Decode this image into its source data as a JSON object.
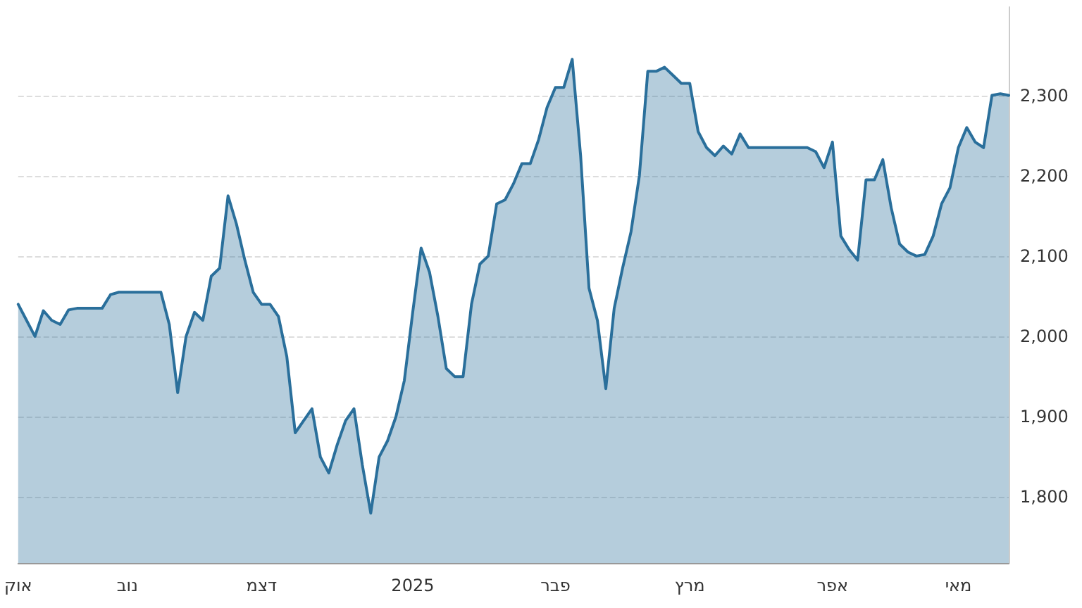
{
  "chart_data": {
    "type": "area",
    "categories": [
      "אוק",
      null,
      null,
      null,
      null,
      null,
      null,
      null,
      null,
      null,
      null,
      null,
      null,
      "נוב",
      null,
      null,
      null,
      null,
      null,
      null,
      null,
      null,
      null,
      null,
      null,
      null,
      null,
      null,
      null,
      "דצמ",
      null,
      null,
      null,
      null,
      null,
      null,
      null,
      null,
      null,
      null,
      null,
      null,
      null,
      null,
      null,
      null,
      null,
      "2025",
      null,
      null,
      null,
      null,
      null,
      null,
      null,
      null,
      null,
      null,
      null,
      null,
      null,
      null,
      null,
      null,
      "פבר",
      null,
      null,
      null,
      null,
      null,
      null,
      null,
      null,
      null,
      null,
      null,
      null,
      null,
      null,
      null,
      "מרץ",
      null,
      null,
      null,
      null,
      null,
      null,
      null,
      null,
      null,
      null,
      null,
      null,
      null,
      null,
      null,
      null,
      "אפר",
      null,
      null,
      null,
      null,
      null,
      null,
      null,
      null,
      null,
      null,
      null,
      null,
      null,
      null,
      "מאי",
      null,
      null,
      null,
      null,
      null,
      null
    ],
    "series": [
      {
        "color": "#2a6f9b",
        "values": [
          2040,
          2020,
          2000,
          2032,
          2020,
          2015,
          2033,
          2035,
          2035,
          2035,
          2035,
          2052,
          2055,
          2055,
          2055,
          2055,
          2055,
          2055,
          2015,
          1930,
          2000,
          2030,
          2020,
          2075,
          2085,
          2175,
          2140,
          2095,
          2055,
          2040,
          2040,
          2025,
          1975,
          1880,
          1895,
          1910,
          1850,
          1830,
          1865,
          1895,
          1910,
          1840,
          1780,
          1850,
          1870,
          1900,
          1945,
          2030,
          2110,
          2080,
          2025,
          1960,
          1950,
          1950,
          2040,
          2090,
          2100,
          2165,
          2170,
          2190,
          2215,
          2215,
          2245,
          2285,
          2310,
          2310,
          2345,
          2225,
          2060,
          2020,
          1935,
          2035,
          2085,
          2130,
          2200,
          2330,
          2330,
          2335,
          2325,
          2315,
          2315,
          2255,
          2235,
          2225,
          2237,
          2227,
          2252,
          2235,
          2235,
          2235,
          2235,
          2235,
          2235,
          2235,
          2235,
          2230,
          2210,
          2242,
          2125,
          2108,
          2095,
          2195,
          2195,
          2220,
          2160,
          2115,
          2105,
          2100,
          2102,
          2125,
          2165,
          2185,
          2235,
          2260,
          2242,
          2235,
          2300,
          2302,
          2300
        ]
      }
    ],
    "ylim": [
      1718,
      2410
    ],
    "yticks": [
      {
        "value": 1800,
        "label": "1,800"
      },
      {
        "value": 1900,
        "label": "1,900"
      },
      {
        "value": 2000,
        "label": "2,000"
      },
      {
        "value": 2100,
        "label": "2,100"
      },
      {
        "value": 2200,
        "label": "2,200"
      },
      {
        "value": 2300,
        "label": "2,300"
      }
    ],
    "grid": "y",
    "marker": "none",
    "line_style": "solid"
  }
}
